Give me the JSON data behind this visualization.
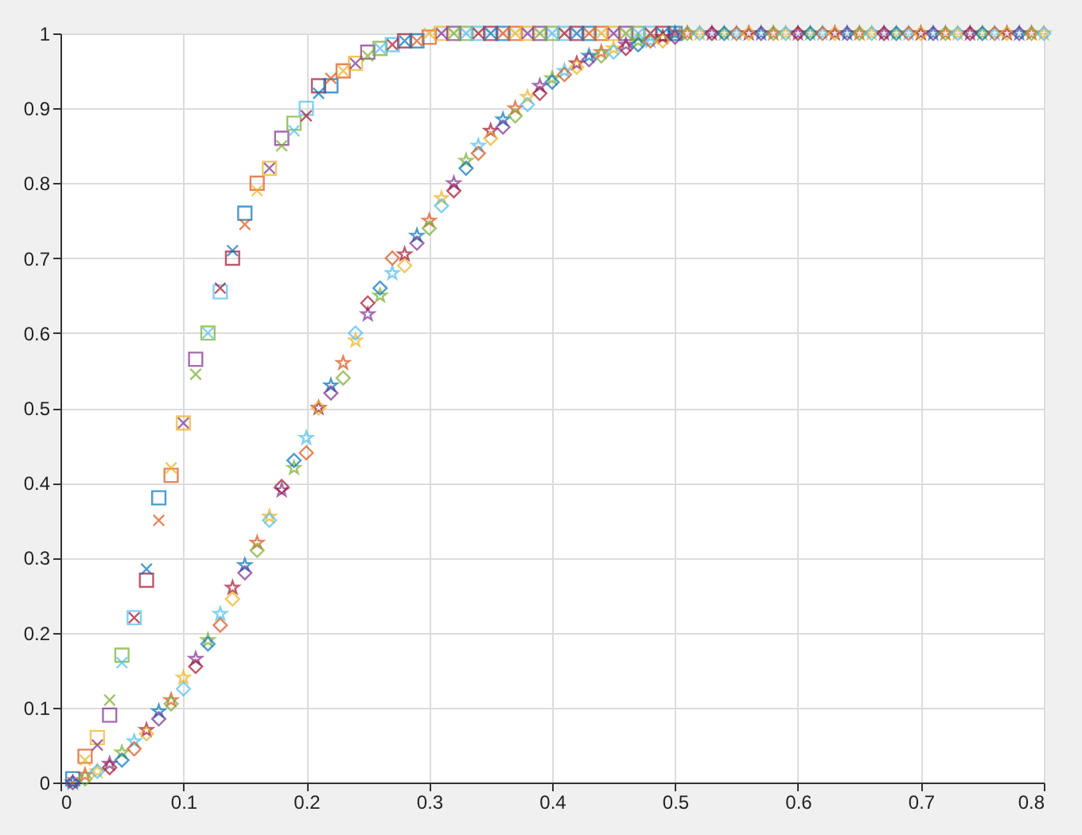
{
  "chart_data": {
    "type": "scatter",
    "xlim": [
      0,
      0.8
    ],
    "ylim": [
      0,
      1
    ],
    "xticks": [
      0,
      0.1,
      0.2,
      0.3,
      0.4,
      0.5,
      0.6,
      0.7,
      0.8
    ],
    "yticks": [
      0,
      0.1,
      0.2,
      0.3,
      0.4,
      0.5,
      0.6,
      0.7,
      0.8,
      0.9,
      1
    ],
    "grid": true,
    "series": [
      {
        "marker": "square",
        "x": [
          0.01,
          0.02,
          0.03,
          0.04,
          0.05,
          0.06,
          0.07,
          0.08,
          0.09,
          0.1,
          0.11,
          0.12,
          0.13,
          0.14,
          0.15,
          0.16,
          0.17,
          0.18,
          0.19,
          0.2,
          0.21,
          0.22,
          0.23,
          0.24,
          0.25,
          0.26,
          0.27,
          0.28,
          0.29,
          0.3,
          0.31,
          0.32,
          0.33,
          0.34,
          0.35,
          0.36,
          0.37,
          0.38,
          0.39,
          0.4,
          0.41,
          0.42,
          0.43,
          0.44,
          0.45,
          0.46,
          0.47,
          0.48,
          0.49,
          0.5
        ],
        "values": [
          0.005,
          0.035,
          0.06,
          0.09,
          0.17,
          0.22,
          0.27,
          0.38,
          0.41,
          0.48,
          0.565,
          0.6,
          0.655,
          0.7,
          0.76,
          0.8,
          0.82,
          0.86,
          0.88,
          0.9,
          0.93,
          0.93,
          0.95,
          0.96,
          0.975,
          0.98,
          0.985,
          0.99,
          0.99,
          0.995,
          1,
          1,
          1,
          1,
          1,
          1,
          1,
          1,
          1,
          1,
          1,
          1,
          1,
          1,
          1,
          1,
          1,
          1,
          1,
          1
        ],
        "colors": [
          "#0072bd",
          "#d95319",
          "#edb120",
          "#7e2f8e",
          "#77ac30",
          "#4dbeee",
          "#a2142f",
          "#0072bd",
          "#d95319",
          "#edb120",
          "#7e2f8e",
          "#77ac30",
          "#4dbeee",
          "#a2142f",
          "#0072bd",
          "#d95319",
          "#edb120",
          "#7e2f8e",
          "#77ac30",
          "#4dbeee",
          "#a2142f",
          "#0072bd",
          "#d95319",
          "#edb120",
          "#7e2f8e",
          "#77ac30",
          "#4dbeee",
          "#a2142f",
          "#0072bd",
          "#d95319",
          "#edb120",
          "#7e2f8e",
          "#77ac30",
          "#4dbeee",
          "#a2142f",
          "#0072bd",
          "#d95319",
          "#edb120",
          "#7e2f8e",
          "#77ac30",
          "#4dbeee",
          "#a2142f",
          "#0072bd",
          "#d95319",
          "#edb120",
          "#7e2f8e",
          "#77ac30",
          "#4dbeee",
          "#a2142f",
          "#0072bd"
        ]
      },
      {
        "marker": "cross",
        "x": [
          0.01,
          0.02,
          0.03,
          0.04,
          0.05,
          0.06,
          0.07,
          0.08,
          0.09,
          0.1,
          0.11,
          0.12,
          0.13,
          0.14,
          0.15,
          0.16,
          0.17,
          0.18,
          0.19,
          0.2,
          0.21,
          0.22,
          0.23,
          0.24,
          0.25,
          0.26,
          0.27,
          0.28,
          0.29,
          0.3,
          0.31,
          0.32,
          0.33,
          0.34,
          0.35,
          0.36,
          0.37,
          0.38,
          0.39,
          0.4,
          0.41,
          0.42,
          0.43,
          0.44,
          0.45,
          0.46,
          0.47,
          0.48,
          0.49,
          0.5
        ],
        "values": [
          0,
          0.03,
          0.05,
          0.11,
          0.16,
          0.22,
          0.285,
          0.35,
          0.42,
          0.48,
          0.545,
          0.6,
          0.66,
          0.71,
          0.745,
          0.79,
          0.82,
          0.85,
          0.87,
          0.89,
          0.92,
          0.94,
          0.95,
          0.96,
          0.97,
          0.98,
          0.985,
          0.99,
          0.99,
          1,
          1,
          1,
          1,
          1,
          1,
          1,
          1,
          1,
          1,
          1,
          1,
          1,
          1,
          1,
          1,
          1,
          1,
          1,
          1,
          1
        ],
        "colors": [
          "#d95319",
          "#edb120",
          "#7e2f8e",
          "#77ac30",
          "#4dbeee",
          "#a2142f",
          "#0072bd",
          "#d95319",
          "#edb120",
          "#7e2f8e",
          "#77ac30",
          "#4dbeee",
          "#a2142f",
          "#0072bd",
          "#d95319",
          "#edb120",
          "#7e2f8e",
          "#77ac30",
          "#4dbeee",
          "#a2142f",
          "#0072bd",
          "#d95319",
          "#edb120",
          "#7e2f8e",
          "#77ac30",
          "#4dbeee",
          "#a2142f",
          "#0072bd",
          "#d95319",
          "#edb120",
          "#7e2f8e",
          "#77ac30",
          "#4dbeee",
          "#a2142f",
          "#0072bd",
          "#d95319",
          "#edb120",
          "#7e2f8e",
          "#77ac30",
          "#4dbeee",
          "#a2142f",
          "#0072bd",
          "#d95319",
          "#edb120",
          "#7e2f8e",
          "#77ac30",
          "#4dbeee",
          "#a2142f",
          "#0072bd",
          "#d95319"
        ]
      },
      {
        "marker": "star",
        "x": [
          0.01,
          0.02,
          0.03,
          0.04,
          0.05,
          0.06,
          0.07,
          0.08,
          0.09,
          0.1,
          0.11,
          0.12,
          0.13,
          0.14,
          0.15,
          0.16,
          0.17,
          0.18,
          0.19,
          0.2,
          0.21,
          0.22,
          0.23,
          0.24,
          0.25,
          0.26,
          0.27,
          0.28,
          0.29,
          0.3,
          0.31,
          0.32,
          0.33,
          0.34,
          0.35,
          0.36,
          0.37,
          0.38,
          0.39,
          0.4,
          0.41,
          0.42,
          0.43,
          0.44,
          0.45,
          0.46,
          0.47,
          0.48,
          0.49,
          0.5,
          0.51,
          0.52,
          0.53,
          0.54,
          0.55,
          0.56,
          0.57,
          0.58,
          0.59,
          0.6,
          0.61,
          0.62,
          0.63,
          0.64,
          0.65,
          0.66,
          0.67,
          0.68,
          0.69,
          0.7,
          0.71,
          0.72,
          0.73,
          0.74,
          0.75,
          0.76,
          0.77,
          0.78,
          0.79,
          0.8
        ],
        "values": [
          0,
          0.01,
          0.015,
          0.025,
          0.04,
          0.055,
          0.07,
          0.095,
          0.11,
          0.14,
          0.165,
          0.19,
          0.225,
          0.26,
          0.29,
          0.32,
          0.355,
          0.39,
          0.42,
          0.46,
          0.5,
          0.53,
          0.56,
          0.59,
          0.625,
          0.65,
          0.68,
          0.705,
          0.73,
          0.75,
          0.78,
          0.8,
          0.83,
          0.85,
          0.87,
          0.885,
          0.9,
          0.915,
          0.93,
          0.94,
          0.95,
          0.96,
          0.97,
          0.975,
          0.98,
          0.985,
          0.99,
          0.99,
          0.995,
          1,
          1,
          1,
          1,
          1,
          1,
          1,
          1,
          1,
          1,
          1,
          1,
          1,
          1,
          1,
          1,
          1,
          1,
          1,
          1,
          1,
          1,
          1,
          1,
          1,
          1,
          1,
          1,
          1,
          1,
          1
        ],
        "colors": [
          "#0072bd",
          "#d95319",
          "#edb120",
          "#7e2f8e",
          "#77ac30",
          "#4dbeee",
          "#a2142f",
          "#0072bd",
          "#d95319",
          "#edb120",
          "#7e2f8e",
          "#77ac30",
          "#4dbeee",
          "#a2142f",
          "#0072bd",
          "#d95319",
          "#edb120",
          "#7e2f8e",
          "#77ac30",
          "#4dbeee",
          "#a2142f",
          "#0072bd",
          "#d95319",
          "#edb120",
          "#7e2f8e",
          "#77ac30",
          "#4dbeee",
          "#a2142f",
          "#0072bd",
          "#d95319",
          "#edb120",
          "#7e2f8e",
          "#77ac30",
          "#4dbeee",
          "#a2142f",
          "#0072bd",
          "#d95319",
          "#edb120",
          "#7e2f8e",
          "#77ac30",
          "#4dbeee",
          "#a2142f",
          "#0072bd",
          "#d95319",
          "#edb120",
          "#7e2f8e",
          "#77ac30",
          "#4dbeee",
          "#a2142f",
          "#0072bd",
          "#d95319",
          "#edb120",
          "#7e2f8e",
          "#77ac30",
          "#4dbeee",
          "#a2142f",
          "#0072bd",
          "#d95319",
          "#edb120",
          "#7e2f8e",
          "#77ac30",
          "#4dbeee",
          "#a2142f",
          "#0072bd",
          "#d95319",
          "#edb120",
          "#7e2f8e",
          "#77ac30",
          "#4dbeee",
          "#a2142f",
          "#0072bd",
          "#d95319",
          "#edb120",
          "#7e2f8e",
          "#77ac30",
          "#4dbeee",
          "#a2142f",
          "#0072bd",
          "#d95319",
          "#edb120"
        ]
      },
      {
        "marker": "diamond",
        "x": [
          0.01,
          0.02,
          0.03,
          0.04,
          0.05,
          0.06,
          0.07,
          0.08,
          0.09,
          0.1,
          0.11,
          0.12,
          0.13,
          0.14,
          0.15,
          0.16,
          0.17,
          0.18,
          0.19,
          0.2,
          0.21,
          0.22,
          0.23,
          0.24,
          0.25,
          0.26,
          0.27,
          0.28,
          0.29,
          0.3,
          0.31,
          0.32,
          0.33,
          0.34,
          0.35,
          0.36,
          0.37,
          0.38,
          0.39,
          0.4,
          0.41,
          0.42,
          0.43,
          0.44,
          0.45,
          0.46,
          0.47,
          0.48,
          0.49,
          0.5,
          0.51,
          0.52,
          0.53,
          0.54,
          0.55,
          0.56,
          0.57,
          0.58,
          0.59,
          0.6,
          0.61,
          0.62,
          0.63,
          0.64,
          0.65,
          0.66,
          0.67,
          0.68,
          0.69,
          0.7,
          0.71,
          0.72,
          0.73,
          0.74,
          0.75,
          0.76,
          0.77,
          0.78,
          0.79,
          0.8
        ],
        "values": [
          0,
          0.005,
          0.015,
          0.02,
          0.03,
          0.045,
          0.065,
          0.085,
          0.105,
          0.125,
          0.155,
          0.185,
          0.21,
          0.245,
          0.28,
          0.31,
          0.35,
          0.395,
          0.43,
          0.44,
          0.5,
          0.52,
          0.54,
          0.6,
          0.64,
          0.66,
          0.7,
          0.69,
          0.72,
          0.74,
          0.77,
          0.79,
          0.82,
          0.84,
          0.86,
          0.875,
          0.89,
          0.905,
          0.92,
          0.935,
          0.945,
          0.955,
          0.965,
          0.97,
          0.975,
          0.98,
          0.985,
          0.99,
          0.99,
          0.995,
          1,
          1,
          1,
          1,
          1,
          1,
          1,
          1,
          1,
          1,
          1,
          1,
          1,
          1,
          1,
          1,
          1,
          1,
          1,
          1,
          1,
          1,
          1,
          1,
          1,
          1,
          1,
          1,
          1,
          1
        ],
        "colors": [
          "#7e2f8e",
          "#77ac30",
          "#4dbeee",
          "#a2142f",
          "#0072bd",
          "#d95319",
          "#edb120",
          "#7e2f8e",
          "#77ac30",
          "#4dbeee",
          "#a2142f",
          "#0072bd",
          "#d95319",
          "#edb120",
          "#7e2f8e",
          "#77ac30",
          "#4dbeee",
          "#a2142f",
          "#0072bd",
          "#d95319",
          "#edb120",
          "#7e2f8e",
          "#77ac30",
          "#4dbeee",
          "#a2142f",
          "#0072bd",
          "#d95319",
          "#edb120",
          "#7e2f8e",
          "#77ac30",
          "#4dbeee",
          "#a2142f",
          "#0072bd",
          "#d95319",
          "#edb120",
          "#7e2f8e",
          "#77ac30",
          "#4dbeee",
          "#a2142f",
          "#0072bd",
          "#d95319",
          "#edb120",
          "#7e2f8e",
          "#77ac30",
          "#4dbeee",
          "#a2142f",
          "#0072bd",
          "#d95319",
          "#edb120",
          "#7e2f8e",
          "#77ac30",
          "#4dbeee",
          "#a2142f",
          "#0072bd",
          "#d95319",
          "#edb120",
          "#7e2f8e",
          "#77ac30",
          "#4dbeee",
          "#a2142f",
          "#0072bd",
          "#d95319",
          "#edb120",
          "#7e2f8e",
          "#77ac30",
          "#4dbeee",
          "#a2142f",
          "#0072bd",
          "#d95319",
          "#edb120",
          "#7e2f8e",
          "#77ac30",
          "#4dbeee",
          "#a2142f",
          "#0072bd",
          "#d95319",
          "#edb120",
          "#7e2f8e",
          "#77ac30",
          "#4dbeee"
        ]
      }
    ]
  }
}
